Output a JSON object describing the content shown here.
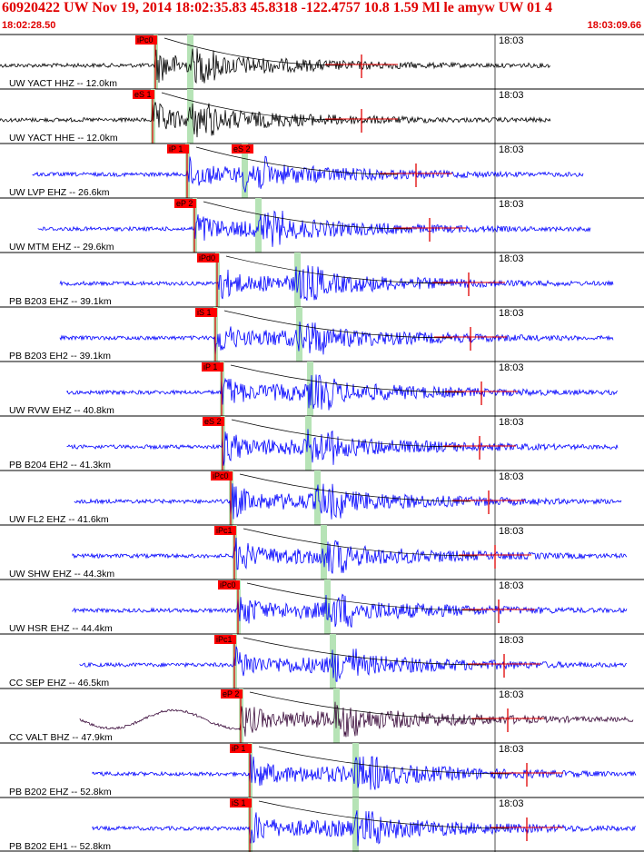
{
  "header": {
    "title": "60920422 UW Nov 19, 2014 18:02:35.83    45.8318 -122.4757 10.8 1.59 Ml le amyw UW 01    4",
    "time_start": "18:02:28.50",
    "time_end": "18:03:09.66"
  },
  "colors": {
    "accent": "#e00000",
    "pick_bg": "#ff0000",
    "trace_blue": "#0000ff",
    "trace_black": "#000000",
    "trace_dark": "#3a0a3a",
    "green_band": "#b6e3b6"
  },
  "minute_tick": "18:03",
  "traces": [
    {
      "label": "UW YACT HHZ -- 12.0km",
      "pick": "iPc0",
      "color": "trace_black"
    },
    {
      "label": "UW YACT HHE -- 12.0km",
      "pick": "eS 1",
      "color": "trace_black"
    },
    {
      "label": "UW LVP EHZ -- 26.6km",
      "pick": "iP 1",
      "pick2": "eS 2",
      "color": "trace_blue"
    },
    {
      "label": "UW MTM EHZ -- 29.6km",
      "pick": "eP 2",
      "color": "trace_blue"
    },
    {
      "label": "PB B203 EHZ -- 39.1km",
      "pick": "iPd0",
      "color": "trace_blue"
    },
    {
      "label": "PB B203 EH2 -- 39.1km",
      "pick": "iS 1",
      "color": "trace_blue"
    },
    {
      "label": "UW RVW EHZ -- 40.8km",
      "pick": "iP 1",
      "color": "trace_blue"
    },
    {
      "label": "PB B204 EH2 -- 41.3km",
      "pick": "eS 2",
      "color": "trace_blue"
    },
    {
      "label": "UW FL2 EHZ -- 41.6km",
      "pick": "iPc0",
      "color": "trace_blue"
    },
    {
      "label": "UW SHW EHZ -- 44.3km",
      "pick": "iPc1",
      "color": "trace_blue"
    },
    {
      "label": "UW HSR EHZ -- 44.4km",
      "pick": "iPc0",
      "color": "trace_blue"
    },
    {
      "label": "CC SEP EHZ -- 46.5km",
      "pick": "iPc1",
      "color": "trace_blue"
    },
    {
      "label": "CC VALT BHZ -- 47.9km",
      "pick": "eP 2",
      "color": "trace_dark"
    },
    {
      "label": "PB B202 EHZ -- 52.8km",
      "pick": "iP 1",
      "color": "trace_blue"
    },
    {
      "label": "PB B202 EH1 -- 52.8km",
      "pick": "iS 1",
      "color": "trace_blue"
    }
  ]
}
